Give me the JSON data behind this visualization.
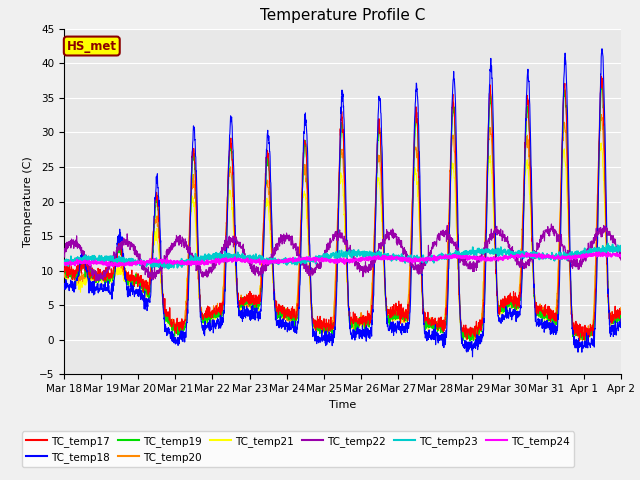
{
  "title": "Temperature Profile C",
  "xlabel": "Time",
  "ylabel": "Temperature (C)",
  "ylim": [
    -5,
    45
  ],
  "annotation_text": "HS_met",
  "annotation_bg": "#FFFF00",
  "annotation_border": "#8B0000",
  "plot_bg": "#E8E8E8",
  "fig_bg": "#F0F0F0",
  "series_colors": {
    "TC_temp17": "#FF0000",
    "TC_temp18": "#0000FF",
    "TC_temp19": "#00DD00",
    "TC_temp20": "#FF8800",
    "TC_temp21": "#FFFF00",
    "TC_temp22": "#9900AA",
    "TC_temp23": "#00CCCC",
    "TC_temp24": "#FF00FF"
  },
  "xtick_labels": [
    "Mar 18",
    "Mar 19",
    "Mar 20",
    "Mar 21",
    "Mar 22",
    "Mar 23",
    "Mar 24",
    "Mar 25",
    "Mar 26",
    "Mar 27",
    "Mar 28",
    "Mar 29",
    "Mar 30",
    "Mar 31",
    "Apr 1",
    "Apr 2"
  ],
  "ytick_values": [
    -5,
    0,
    5,
    10,
    15,
    20,
    25,
    30,
    35,
    40,
    45
  ],
  "legend_entries": [
    "TC_temp17",
    "TC_temp18",
    "TC_temp19",
    "TC_temp20",
    "TC_temp21",
    "TC_temp22",
    "TC_temp23",
    "TC_temp24"
  ]
}
